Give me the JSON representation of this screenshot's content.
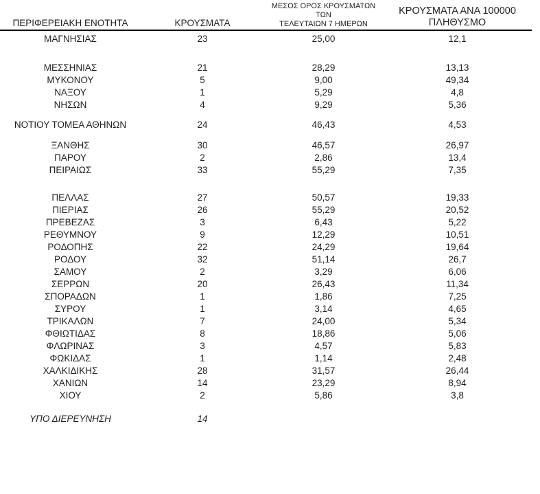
{
  "page": {
    "background_color": "#ffffff",
    "text_color": "#1f1f1f",
    "rule_color": "#000000"
  },
  "chart_data": {
    "type": "table",
    "title": "",
    "decimal_separator": ",",
    "headers": {
      "region": "ΠΕΡΙΦΕΡΕΙΑΚΗ ΕΝΟΤΗΤΑ",
      "cases": "ΚΡΟΥΣΜΑΤΑ",
      "avg7_line1": "ΜΕΣΟΣ ΟΡΟΣ ΚΡΟΥΣΜΑΤΩΝ ΤΩΝ",
      "avg7_line2": "ΤΕΛΕΥΤΑΙΩΝ 7 ΗΜΕΡΩΝ",
      "per100k_line1": "ΚΡΟΥΣΜΑΤΑ ΑΝΑ 100000",
      "per100k_line2": "ΠΛΗΘΥΣΜΟ"
    },
    "rows": [
      {
        "type": "spacer",
        "height": 4
      },
      {
        "region": "ΜΑΓΝΗΣΙΑΣ",
        "cases": "23",
        "avg7": "25,00",
        "per100k": "12,1"
      },
      {
        "type": "spacer",
        "height": 24
      },
      {
        "region": "ΜΕΣΣΗΝΙΑΣ",
        "cases": "21",
        "avg7": "28,29",
        "per100k": "13,13"
      },
      {
        "region": "ΜΥΚΟΝΟΥ",
        "cases": "5",
        "avg7": "9,00",
        "per100k": "49,34"
      },
      {
        "region": "ΝΑΞΟΥ",
        "cases": "1",
        "avg7": "5,29",
        "per100k": "4,8"
      },
      {
        "region": "ΝΗΣΩΝ",
        "cases": "4",
        "avg7": "9,29",
        "per100k": "5,36"
      },
      {
        "type": "spacer",
        "height": 11
      },
      {
        "region": "ΝΟΤΙΟΥ ΤΟΜΕΑ ΑΘΗΝΩΝ",
        "cases": "24",
        "avg7": "46,43",
        "per100k": "4,53"
      },
      {
        "type": "spacer",
        "height": 12
      },
      {
        "region": "ΞΑΝΘΗΣ",
        "cases": "30",
        "avg7": "46,57",
        "per100k": "26,97"
      },
      {
        "region": "ΠΑΡΟΥ",
        "cases": "2",
        "avg7": "2,86",
        "per100k": "13,4"
      },
      {
        "region": "ΠΕΙΡΑΙΩΣ",
        "cases": "33",
        "avg7": "55,29",
        "per100k": "7,35"
      },
      {
        "type": "spacer",
        "height": 22
      },
      {
        "region": "ΠΕΛΛΑΣ",
        "cases": "27",
        "avg7": "50,57",
        "per100k": "19,33"
      },
      {
        "region": "ΠΙΕΡΙΑΣ",
        "cases": "26",
        "avg7": "55,29",
        "per100k": "20,52"
      },
      {
        "region": "ΠΡΕΒΕΖΑΣ",
        "cases": "3",
        "avg7": "6,43",
        "per100k": "5,22"
      },
      {
        "region": "ΡΕΘΥΜΝΟΥ",
        "cases": "9",
        "avg7": "12,29",
        "per100k": "10,51"
      },
      {
        "region": "ΡΟΔΟΠΗΣ",
        "cases": "22",
        "avg7": "24,29",
        "per100k": "19,64"
      },
      {
        "region": "ΡΟΔΟΥ",
        "cases": "32",
        "avg7": "51,14",
        "per100k": "26,7"
      },
      {
        "region": "ΣΑΜΟΥ",
        "cases": "2",
        "avg7": "3,29",
        "per100k": "6,06"
      },
      {
        "region": "ΣΕΡΡΩΝ",
        "cases": "20",
        "avg7": "26,43",
        "per100k": "11,34"
      },
      {
        "region": "ΣΠΟΡΑΔΩΝ",
        "cases": "1",
        "avg7": "1,86",
        "per100k": "7,25"
      },
      {
        "region": "ΣΥΡΟΥ",
        "cases": "1",
        "avg7": "3,14",
        "per100k": "4,65"
      },
      {
        "region": "ΤΡΙΚΑΛΩΝ",
        "cases": "7",
        "avg7": "24,00",
        "per100k": "5,34"
      },
      {
        "region": "ΦΘΙΩΤΙΔΑΣ",
        "cases": "8",
        "avg7": "18,86",
        "per100k": "5,06"
      },
      {
        "region": "ΦΛΩΡΙΝΑΣ",
        "cases": "3",
        "avg7": "4,57",
        "per100k": "5,83"
      },
      {
        "region": "ΦΩΚΙΔΑΣ",
        "cases": "1",
        "avg7": "1,14",
        "per100k": "2,48"
      },
      {
        "region": "ΧΑΛΚΙΔΙΚΗΣ",
        "cases": "28",
        "avg7": "31,57",
        "per100k": "26,44"
      },
      {
        "region": "ΧΑΝΙΩΝ",
        "cases": "14",
        "avg7": "23,29",
        "per100k": "8,94"
      },
      {
        "region": "ΧΙΟΥ",
        "cases": "2",
        "avg7": "5,86",
        "per100k": "3,8"
      },
      {
        "type": "spacer",
        "height": 16
      },
      {
        "region": "ΥΠΟ ΔΙΕΡΕΥΝΗΣΗ",
        "cases": "14",
        "avg7": "",
        "per100k": "",
        "italic": true
      }
    ]
  }
}
